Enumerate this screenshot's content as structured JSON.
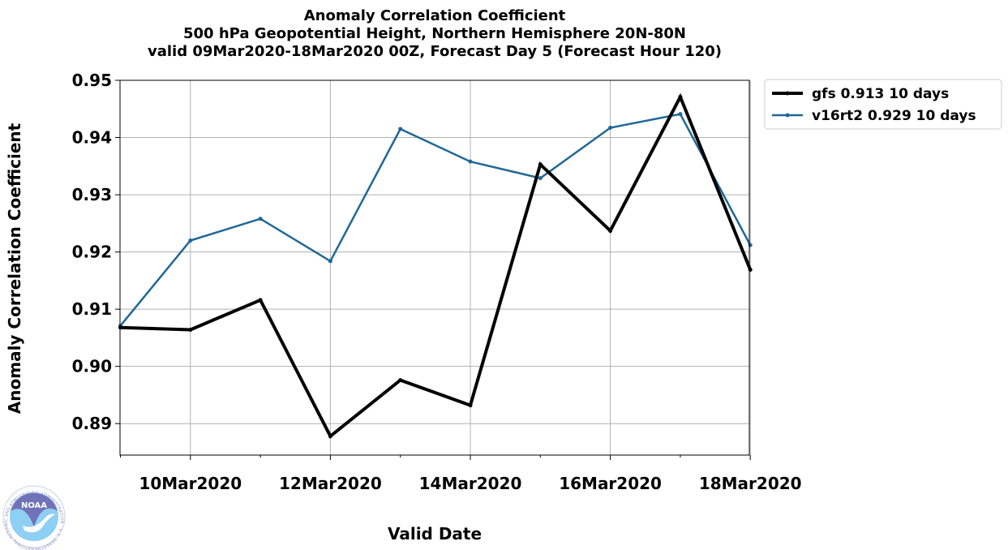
{
  "chart_data": {
    "type": "line",
    "title": [
      "Anomaly Correlation Coefficient",
      "500 hPa Geopotential Height, Northern Hemisphere 20N-80N",
      "valid 09Mar2020-18Mar2020 00Z, Forecast Day 5 (Forecast Hour 120)"
    ],
    "xlabel": "Valid Date",
    "ylabel": "Anomaly Correlation Coefficient",
    "x": [
      "09Mar2020",
      "10Mar2020",
      "11Mar2020",
      "12Mar2020",
      "13Mar2020",
      "14Mar2020",
      "15Mar2020",
      "16Mar2020",
      "17Mar2020",
      "18Mar2020"
    ],
    "x_tick_labels": [
      "10Mar2020",
      "12Mar2020",
      "14Mar2020",
      "16Mar2020",
      "18Mar2020"
    ],
    "y_tick_labels": [
      "0.89",
      "0.90",
      "0.91",
      "0.92",
      "0.93",
      "0.94",
      "0.95"
    ],
    "ylim": [
      0.8845,
      0.95
    ],
    "grid": true,
    "legend_position": "outside top-right",
    "series": [
      {
        "name": "gfs 0.913 10 days",
        "color": "#000000",
        "values": [
          0.9068,
          0.9064,
          0.9116,
          0.8878,
          0.8976,
          0.8932,
          0.9353,
          0.9237,
          0.9471,
          0.9169
        ]
      },
      {
        "name": "v16rt2 0.929 10 days",
        "color": "#1f6896",
        "values": [
          0.9071,
          0.922,
          0.9258,
          0.9184,
          0.9415,
          0.9358,
          0.9329,
          0.9417,
          0.9441,
          0.9212
        ]
      }
    ]
  },
  "logo": {
    "text": "NOAA",
    "ring_text": "NATIONAL OCEANIC AND ATMOSPHERIC ADMINISTRATION · U.S. DEPARTMENT OF COMMERCE"
  }
}
